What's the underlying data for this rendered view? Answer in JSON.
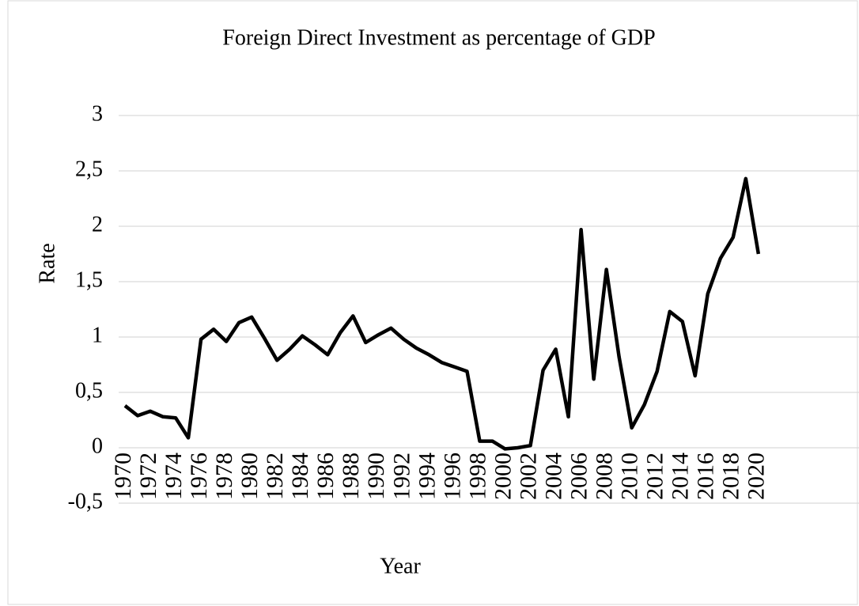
{
  "chart_data": {
    "type": "line",
    "title": "Foreign Direct Investment as percentage of GDP",
    "x_label": "Year",
    "y_label": "Rate",
    "categories": [
      "1970",
      null,
      "1972",
      null,
      "1974",
      null,
      "1976",
      null,
      "1978",
      null,
      "1980",
      null,
      "1982",
      null,
      "1984",
      null,
      "1986",
      null,
      "1988",
      null,
      "1990",
      null,
      "1992",
      null,
      "1994",
      null,
      "1996",
      null,
      "1998",
      null,
      "2000",
      null,
      "2002",
      null,
      "2004",
      null,
      "2006",
      null,
      "2008",
      null,
      "2010",
      null,
      "2012",
      null,
      "2014",
      null,
      "2016",
      null,
      "2018",
      null,
      "2020",
      null,
      null,
      null,
      null,
      null,
      null,
      null,
      null
    ],
    "series": [
      {
        "name": "Rate",
        "color": "#000000",
        "values": [
          0.38,
          0.29,
          0.33,
          0.28,
          0.27,
          0.09,
          0.98,
          1.07,
          0.96,
          1.13,
          1.18,
          0.99,
          0.79,
          0.89,
          1.01,
          0.93,
          0.84,
          1.04,
          1.19,
          0.95,
          1.02,
          1.08,
          0.98,
          0.9,
          0.84,
          0.77,
          0.73,
          0.69,
          0.06,
          0.06,
          -0.01,
          0.0,
          0.02,
          0.7,
          0.89,
          0.28,
          1.97,
          0.62,
          1.61,
          0.82,
          0.18,
          0.39,
          0.69,
          1.23,
          1.14,
          0.65,
          1.39,
          1.71,
          1.9,
          2.43,
          1.75,
          null,
          null,
          null,
          null,
          null,
          null,
          null,
          null
        ]
      }
    ],
    "ylim": [
      -0.5,
      3
    ],
    "yticks": [
      {
        "value": -0.5,
        "label": "-0,5"
      },
      0,
      {
        "value": 0.5,
        "label": "0,5"
      },
      1,
      {
        "value": 1.5,
        "label": "1,5"
      },
      2,
      {
        "value": 2.5,
        "label": "2,5"
      },
      3
    ],
    "grid": true
  }
}
